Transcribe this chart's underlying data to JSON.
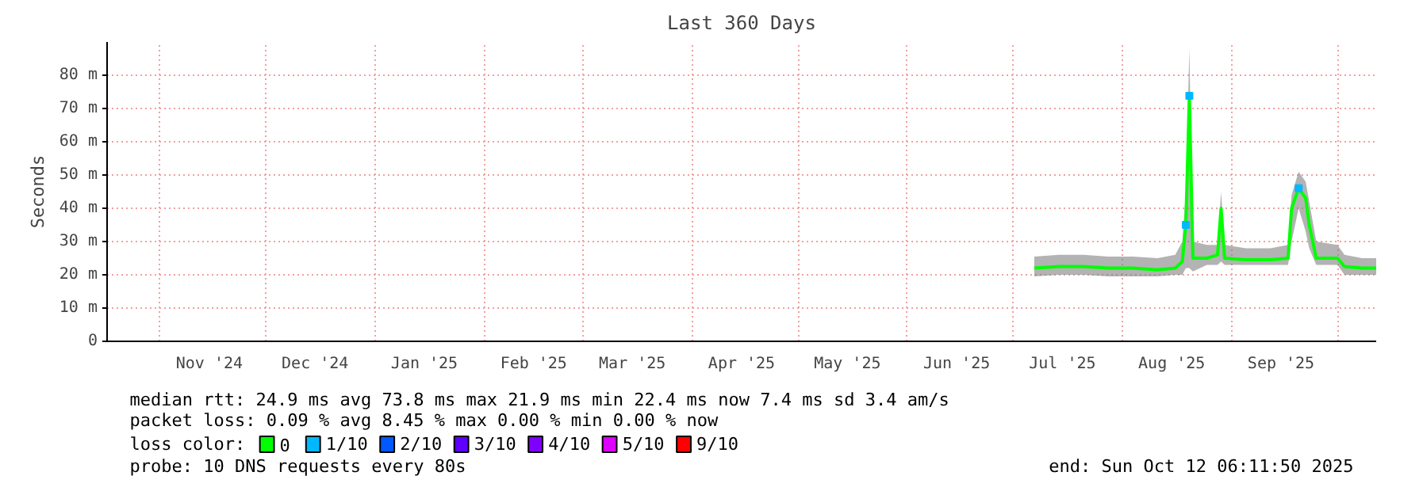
{
  "chart_data": {
    "type": "line",
    "title": "Last 360 Days",
    "ylabel": "Seconds",
    "legend_title": "loss color:",
    "x": [
      "2025-07-07",
      "2025-07-14",
      "2025-07-21",
      "2025-07-28",
      "2025-08-04",
      "2025-08-11",
      "2025-08-16",
      "2025-08-18",
      "2025-08-19",
      "2025-08-20",
      "2025-08-21",
      "2025-08-25",
      "2025-08-28",
      "2025-08-29",
      "2025-08-30",
      "2025-09-05",
      "2025-09-12",
      "2025-09-17",
      "2025-09-18",
      "2025-09-20",
      "2025-09-22",
      "2025-09-23",
      "2025-09-25",
      "2025-10-01",
      "2025-10-03",
      "2025-10-08",
      "2025-10-12"
    ],
    "series": [
      {
        "name": "0",
        "color": "#00ff00",
        "values": [
          22,
          22.5,
          22.5,
          22,
          22,
          21.5,
          22,
          24,
          35,
          73.8,
          25,
          25,
          26,
          40,
          25,
          24.5,
          24.5,
          25,
          40,
          46,
          43,
          35,
          25,
          25,
          22.5,
          22,
          22
        ],
        "lower": [
          19.5,
          20,
          20,
          19.5,
          19.5,
          19.5,
          20,
          20,
          22,
          22,
          21,
          23,
          23,
          24,
          23,
          23,
          23,
          23,
          30,
          40,
          33,
          28,
          23,
          23,
          20,
          20,
          20
        ],
        "upper": [
          25.5,
          26,
          26,
          25.5,
          25.5,
          25,
          26,
          30,
          45,
          88,
          30,
          29,
          29,
          45,
          29,
          28,
          28,
          29,
          44,
          51,
          48,
          42,
          30,
          29,
          26,
          25,
          25
        ]
      },
      {
        "name": "1/10",
        "color": "#00b8ff",
        "type": "scatter",
        "marker": "square",
        "values": [
          null,
          null,
          null,
          null,
          null,
          null,
          null,
          null,
          35,
          73.8,
          null,
          null,
          null,
          null,
          null,
          null,
          null,
          null,
          null,
          46,
          null,
          null,
          null,
          null,
          null,
          null,
          null
        ]
      },
      {
        "name": "2/10",
        "color": "#0059ff",
        "type": "scatter",
        "marker": "square",
        "values": [
          null,
          null,
          null,
          null,
          null,
          null,
          null,
          null,
          null,
          null,
          null,
          null,
          null,
          null,
          null,
          null,
          null,
          null,
          null,
          null,
          null,
          null,
          null,
          null,
          null,
          null,
          null
        ]
      },
      {
        "name": "3/10",
        "color": "#5e00ff",
        "type": "scatter",
        "marker": "square",
        "values": [
          null,
          null,
          null,
          null,
          null,
          null,
          null,
          null,
          null,
          null,
          null,
          null,
          null,
          null,
          null,
          null,
          null,
          null,
          null,
          null,
          null,
          null,
          null,
          null,
          null,
          null,
          null
        ]
      },
      {
        "name": "4/10",
        "color": "#7e00ff",
        "type": "scatter",
        "marker": "square",
        "values": [
          null,
          null,
          null,
          null,
          null,
          null,
          null,
          null,
          null,
          null,
          null,
          null,
          null,
          null,
          null,
          null,
          null,
          null,
          null,
          null,
          null,
          null,
          null,
          null,
          null,
          null,
          null
        ]
      },
      {
        "name": "5/10",
        "color": "#dd00ff",
        "type": "scatter",
        "marker": "square",
        "values": [
          null,
          null,
          null,
          null,
          null,
          null,
          null,
          null,
          null,
          null,
          null,
          null,
          null,
          null,
          null,
          null,
          null,
          null,
          null,
          null,
          null,
          null,
          null,
          null,
          null,
          null,
          null
        ]
      },
      {
        "name": "9/10",
        "color": "#ff0000",
        "type": "scatter",
        "marker": "square",
        "values": [
          null,
          null,
          null,
          null,
          null,
          null,
          null,
          null,
          null,
          null,
          null,
          null,
          null,
          null,
          null,
          null,
          null,
          null,
          null,
          null,
          null,
          null,
          null,
          null,
          null,
          null,
          null
        ]
      }
    ],
    "xlim": [
      "2024-10-17",
      "2025-10-12"
    ],
    "xticks": [
      {
        "value": "2024-11-01",
        "label": null
      },
      {
        "value": "2024-11-15",
        "label": "Nov '24"
      },
      {
        "value": "2024-12-01",
        "label": null
      },
      {
        "value": "2024-12-15",
        "label": "Dec '24"
      },
      {
        "value": "2025-01-01",
        "label": null
      },
      {
        "value": "2025-01-15",
        "label": "Jan '25"
      },
      {
        "value": "2025-02-01",
        "label": null
      },
      {
        "value": "2025-02-15",
        "label": "Feb '25"
      },
      {
        "value": "2025-03-01",
        "label": null
      },
      {
        "value": "2025-03-15",
        "label": "Mar '25"
      },
      {
        "value": "2025-04-01",
        "label": null
      },
      {
        "value": "2025-04-15",
        "label": "Apr '25"
      },
      {
        "value": "2025-05-01",
        "label": null
      },
      {
        "value": "2025-05-15",
        "label": "May '25"
      },
      {
        "value": "2025-06-01",
        "label": null
      },
      {
        "value": "2025-06-15",
        "label": "Jun '25"
      },
      {
        "value": "2025-07-01",
        "label": null
      },
      {
        "value": "2025-07-15",
        "label": "Jul '25"
      },
      {
        "value": "2025-08-01",
        "label": null
      },
      {
        "value": "2025-08-15",
        "label": "Aug '25"
      },
      {
        "value": "2025-09-01",
        "label": null
      },
      {
        "value": "2025-09-15",
        "label": "Sep '25"
      },
      {
        "value": "2025-10-01",
        "label": null
      }
    ],
    "ylim": [
      0,
      90
    ],
    "yticks": [
      0,
      {
        "value": 10,
        "label": "10 m"
      },
      {
        "value": 20,
        "label": "20 m"
      },
      {
        "value": 30,
        "label": "30 m"
      },
      {
        "value": 40,
        "label": "40 m"
      },
      {
        "value": 50,
        "label": "50 m"
      },
      {
        "value": 60,
        "label": "60 m"
      },
      {
        "value": 70,
        "label": "70 m"
      },
      {
        "value": 80,
        "label": "80 m"
      }
    ],
    "grid": true,
    "legend": "bottom",
    "line_style": "solid",
    "annotations": [
      "median rtt:  24.9 ms avg  73.8 ms max  21.9 ms min  22.4 ms now  7.4 ms sd  3.4   am/s",
      "packet loss: 0.09 % avg  8.45 % max  0.00 % min  0.00 % now",
      "probe:       10 DNS requests every 80s",
      "end: Sun Oct 12 06:11:50 2025"
    ]
  }
}
